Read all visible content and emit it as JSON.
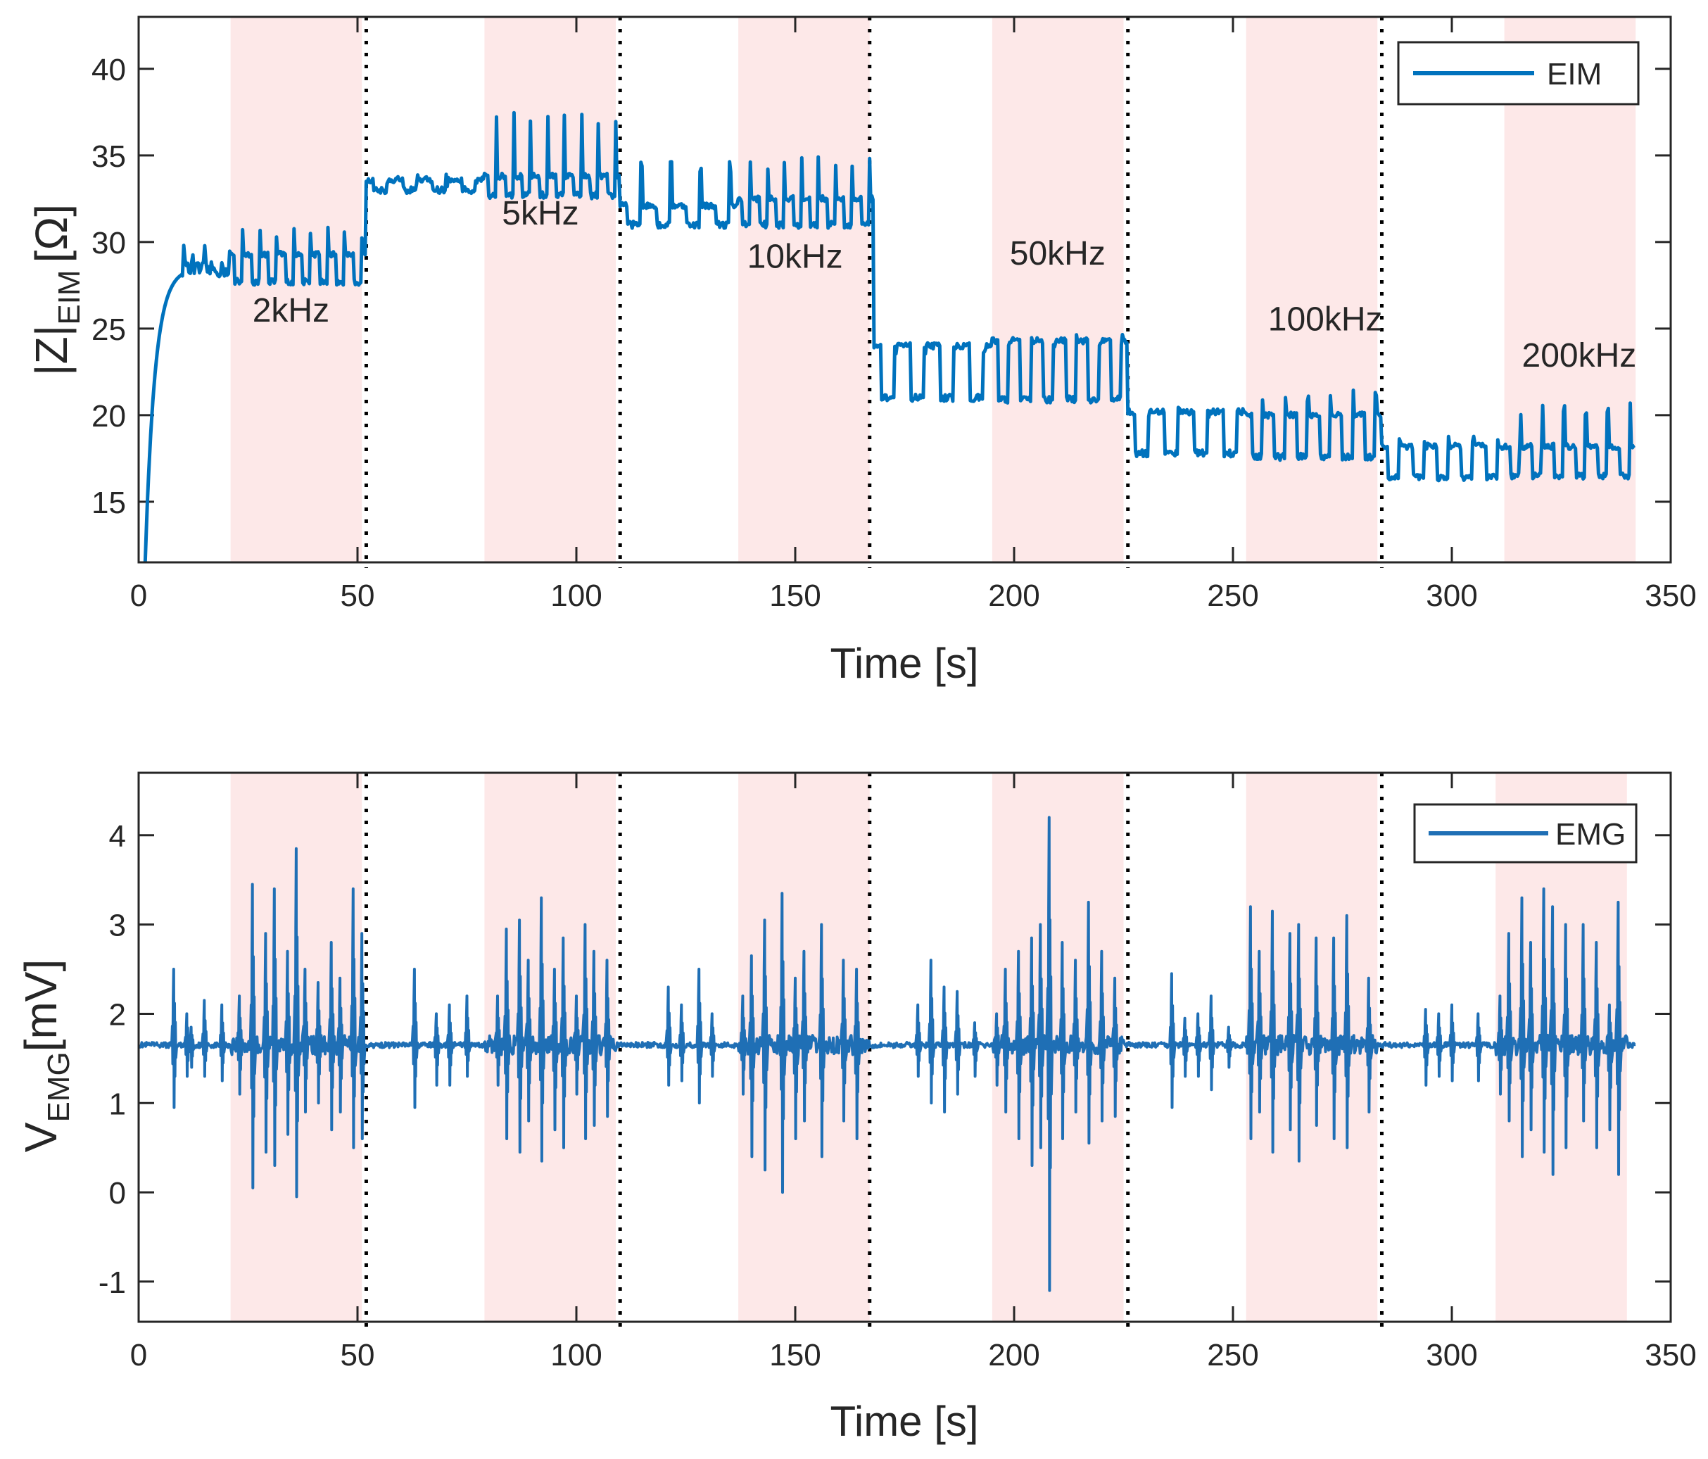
{
  "colors": {
    "line_eim": "#0072BD",
    "line_emg": "#1f6fb5",
    "band": "#fde8e8",
    "axes": "#262626",
    "divider": "#000000"
  },
  "chart_data": [
    {
      "type": "line",
      "title": "",
      "xlabel": "Time [s]",
      "ylabel_main": "|Z|",
      "ylabel_sub": "EIM",
      "ylabel_unit": "[Ω]",
      "xlim": [
        0,
        350
      ],
      "ylim": [
        11.5,
        43
      ],
      "x_ticks": [
        0,
        50,
        100,
        150,
        200,
        250,
        300,
        350
      ],
      "x_tick_labels": [
        "0",
        "50",
        "100",
        "150",
        "200",
        "250",
        "300",
        "350"
      ],
      "y_ticks": [
        15,
        20,
        25,
        30,
        35,
        40
      ],
      "y_tick_labels": [
        "15",
        "20",
        "25",
        "30",
        "35",
        "40"
      ],
      "legend": {
        "label": "EIM",
        "location": "top-right"
      },
      "shaded_intervals": [
        [
          21,
          51
        ],
        [
          79,
          109
        ],
        [
          137,
          167
        ],
        [
          195,
          225
        ],
        [
          253,
          283
        ],
        [
          312,
          342
        ]
      ],
      "dividers": [
        52,
        110,
        167,
        226,
        284
      ],
      "annotations": [
        {
          "text": "2kHz",
          "x": 26,
          "y": 25.4
        },
        {
          "text": "5kHz",
          "x": 83,
          "y": 31
        },
        {
          "text": "10kHz",
          "x": 139,
          "y": 28.5
        },
        {
          "text": "50kHz",
          "x": 199,
          "y": 28.7
        },
        {
          "text": "100kHz",
          "x": 258,
          "y": 24.9
        },
        {
          "text": "200kHz",
          "x": 316,
          "y": 22.8
        }
      ],
      "series": [
        {
          "name": "EIM",
          "segments": [
            {
              "t0": 21,
              "t1": 52,
              "base": 29.3,
              "low": 27.7,
              "high": 31.0,
              "bursts": 8
            },
            {
              "t0": 52,
              "t1": 79,
              "base": 33.6,
              "low": 33.0,
              "high": 34.0,
              "bursts": 4
            },
            {
              "t0": 79,
              "t1": 110,
              "base": 33.8,
              "low": 32.7,
              "high": 37.5,
              "bursts": 8
            },
            {
              "t0": 110,
              "t1": 137,
              "base": 32.1,
              "low": 31.0,
              "high": 34.8,
              "bursts": 4
            },
            {
              "t0": 137,
              "t1": 168,
              "base": 32.5,
              "low": 31.0,
              "high": 35.0,
              "bursts": 8
            },
            {
              "t0": 168,
              "t1": 195,
              "base": 24.0,
              "low": 21.0,
              "high": 24.3,
              "bursts": 4
            },
            {
              "t0": 195,
              "t1": 226,
              "base": 24.3,
              "low": 20.9,
              "high": 24.7,
              "bursts": 6
            },
            {
              "t0": 226,
              "t1": 253,
              "base": 20.2,
              "low": 17.8,
              "high": 20.5,
              "bursts": 4
            },
            {
              "t0": 253,
              "t1": 284,
              "base": 20.0,
              "low": 17.6,
              "high": 21.5,
              "bursts": 6
            },
            {
              "t0": 284,
              "t1": 312,
              "base": 18.2,
              "low": 16.4,
              "high": 19.0,
              "bursts": 5
            },
            {
              "t0": 312,
              "t1": 342,
              "base": 18.2,
              "low": 16.5,
              "high": 20.8,
              "bursts": 6
            }
          ]
        }
      ]
    },
    {
      "type": "line",
      "title": "",
      "xlabel": "Time [s]",
      "ylabel_main": "V",
      "ylabel_sub": "EMG",
      "ylabel_unit": "[mV]",
      "xlim": [
        0,
        350
      ],
      "ylim": [
        -1.45,
        4.7
      ],
      "x_ticks": [
        0,
        50,
        100,
        150,
        200,
        250,
        300,
        350
      ],
      "x_tick_labels": [
        "0",
        "50",
        "100",
        "150",
        "200",
        "250",
        "300",
        "350"
      ],
      "y_ticks": [
        -1,
        0,
        1,
        2,
        3,
        4
      ],
      "y_tick_labels": [
        "-1",
        "0",
        "1",
        "2",
        "3",
        "4"
      ],
      "legend": {
        "label": "EMG",
        "location": "top-right"
      },
      "shaded_intervals": [
        [
          21,
          51
        ],
        [
          79,
          109
        ],
        [
          137,
          167
        ],
        [
          195,
          225
        ],
        [
          253,
          283
        ],
        [
          310,
          340
        ]
      ],
      "dividers": [
        52,
        110,
        167,
        226,
        284
      ],
      "series": [
        {
          "name": "EMG",
          "baseline": 1.65,
          "spikes": [
            [
              8,
              2.5,
              0.95
            ],
            [
              11,
              2.0,
              1.3
            ],
            [
              12,
              1.85,
              1.4
            ],
            [
              15,
              2.15,
              1.3
            ],
            [
              19,
              2.1,
              1.25
            ],
            [
              23,
              2.2,
              1.1
            ],
            [
              26,
              3.45,
              0.05
            ],
            [
              29,
              2.9,
              0.45
            ],
            [
              31,
              3.4,
              0.3
            ],
            [
              34,
              2.7,
              0.65
            ],
            [
              36,
              3.85,
              -0.05
            ],
            [
              38,
              2.5,
              0.9
            ],
            [
              41,
              2.35,
              1.0
            ],
            [
              44,
              2.8,
              0.7
            ],
            [
              46,
              2.4,
              0.9
            ],
            [
              49,
              3.4,
              0.5
            ],
            [
              51,
              2.9,
              0.6
            ],
            [
              63,
              2.5,
              0.95
            ],
            [
              68,
              2.0,
              1.2
            ],
            [
              71,
              2.1,
              1.2
            ],
            [
              75,
              2.2,
              1.3
            ],
            [
              82,
              2.2,
              1.2
            ],
            [
              84,
              2.95,
              0.6
            ],
            [
              87,
              3.05,
              0.45
            ],
            [
              89,
              2.6,
              0.8
            ],
            [
              92,
              3.3,
              0.35
            ],
            [
              95,
              2.5,
              0.7
            ],
            [
              97,
              2.85,
              0.5
            ],
            [
              100,
              2.2,
              1.1
            ],
            [
              102,
              3.0,
              0.6
            ],
            [
              104,
              2.7,
              0.75
            ],
            [
              107,
              2.6,
              0.85
            ],
            [
              121,
              2.3,
              1.2
            ],
            [
              124,
              2.1,
              1.25
            ],
            [
              128,
              2.5,
              1.0
            ],
            [
              131,
              2.0,
              1.3
            ],
            [
              138,
              2.2,
              1.1
            ],
            [
              140,
              2.65,
              0.4
            ],
            [
              143,
              3.05,
              0.25
            ],
            [
              147,
              3.35,
              0.0
            ],
            [
              150,
              2.4,
              0.6
            ],
            [
              152,
              2.7,
              0.8
            ],
            [
              156,
              3.0,
              0.4
            ],
            [
              161,
              2.6,
              0.8
            ],
            [
              164,
              2.5,
              0.6
            ],
            [
              178,
              2.1,
              1.3
            ],
            [
              181,
              2.6,
              1.0
            ],
            [
              184,
              2.3,
              0.9
            ],
            [
              187,
              2.25,
              1.1
            ],
            [
              191,
              1.9,
              1.3
            ],
            [
              196,
              2.0,
              1.2
            ],
            [
              198,
              2.5,
              0.9
            ],
            [
              201,
              2.7,
              0.6
            ],
            [
              204,
              2.85,
              0.3
            ],
            [
              206,
              3.0,
              0.5
            ],
            [
              208,
              4.2,
              -1.1
            ],
            [
              211,
              2.8,
              0.6
            ],
            [
              214,
              2.6,
              0.9
            ],
            [
              217,
              3.25,
              0.55
            ],
            [
              220,
              2.7,
              0.8
            ],
            [
              223,
              2.4,
              0.85
            ],
            [
              236,
              2.45,
              0.95
            ],
            [
              239,
              1.95,
              1.3
            ],
            [
              242,
              2.0,
              1.3
            ],
            [
              245,
              2.2,
              1.15
            ],
            [
              249,
              1.85,
              1.4
            ],
            [
              254,
              3.2,
              0.6
            ],
            [
              256,
              2.7,
              0.9
            ],
            [
              259,
              3.15,
              0.45
            ],
            [
              263,
              2.9,
              0.7
            ],
            [
              265,
              3.0,
              0.35
            ],
            [
              269,
              2.85,
              0.75
            ],
            [
              273,
              2.85,
              0.6
            ],
            [
              276,
              3.1,
              0.5
            ],
            [
              281,
              2.4,
              0.9
            ],
            [
              294,
              2.05,
              1.2
            ],
            [
              297,
              2.0,
              1.3
            ],
            [
              300,
              2.1,
              1.25
            ],
            [
              306,
              2.0,
              1.25
            ],
            [
              311,
              2.2,
              1.1
            ],
            [
              313,
              2.9,
              0.8
            ],
            [
              316,
              3.3,
              0.4
            ],
            [
              318,
              2.8,
              0.7
            ],
            [
              321,
              3.4,
              0.45
            ],
            [
              323,
              3.2,
              0.2
            ],
            [
              326,
              3.0,
              0.5
            ],
            [
              330,
              3.0,
              0.8
            ],
            [
              333,
              2.8,
              0.5
            ],
            [
              336,
              2.1,
              0.7
            ],
            [
              338,
              3.25,
              0.2
            ]
          ]
        }
      ]
    }
  ]
}
